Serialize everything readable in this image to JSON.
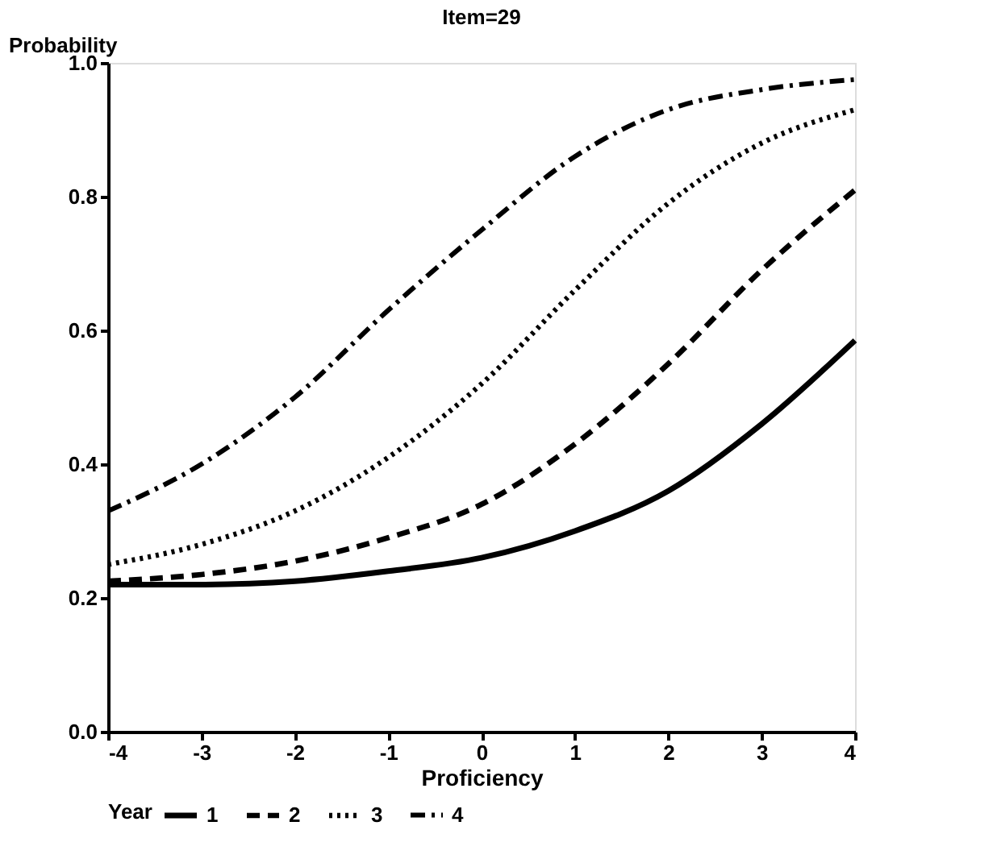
{
  "chart_data": {
    "type": "line",
    "title": "Item=29",
    "xlabel": "Proficiency",
    "ylabel": "Probability",
    "legend_title": "Year",
    "legend": "bottom",
    "grid": false,
    "marker": "none",
    "x": [
      -4,
      -3,
      -2,
      -1,
      0,
      1,
      2,
      3,
      4
    ],
    "xlim": [
      -4,
      4
    ],
    "xticks": [
      -4,
      -3,
      -2,
      -1,
      0,
      1,
      2,
      3,
      4
    ],
    "ylim": [
      0,
      1
    ],
    "yticks": [
      {
        "value": 0,
        "label": "0.0"
      },
      {
        "value": 0.2,
        "label": "0.2"
      },
      {
        "value": 0.4,
        "label": "0.4"
      },
      {
        "value": 0.6,
        "label": "0.6"
      },
      {
        "value": 0.8,
        "label": "0.8"
      },
      {
        "value": 1,
        "label": "1.0"
      }
    ],
    "series": [
      {
        "name": "1",
        "color": "#000000",
        "line_style": "solid",
        "values": [
          0.22,
          0.22,
          0.225,
          0.24,
          0.26,
          0.3,
          0.36,
          0.46,
          0.585
        ]
      },
      {
        "name": "2",
        "color": "#000000",
        "line_style": "dashed",
        "values": [
          0.225,
          0.235,
          0.255,
          0.29,
          0.34,
          0.43,
          0.55,
          0.69,
          0.81
        ]
      },
      {
        "name": "3",
        "color": "#000000",
        "line_style": "dotted",
        "values": [
          0.25,
          0.28,
          0.33,
          0.41,
          0.52,
          0.66,
          0.79,
          0.88,
          0.93
        ]
      },
      {
        "name": "4",
        "color": "#000000",
        "line_style": "dashdot",
        "values": [
          0.33,
          0.4,
          0.5,
          0.63,
          0.75,
          0.86,
          0.93,
          0.96,
          0.975
        ]
      }
    ]
  }
}
